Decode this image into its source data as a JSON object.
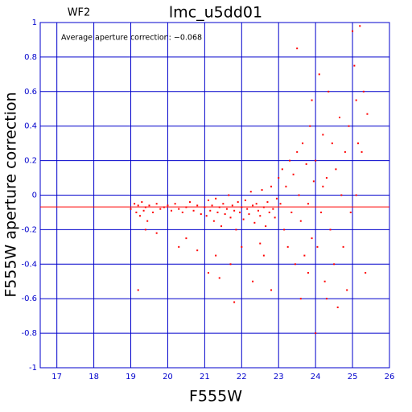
{
  "chart_data": {
    "type": "scatter",
    "title": "lmc_u5dd01",
    "subtitle": "WF2",
    "annotation": "Average aperture correction: −0.068",
    "reference_line": -0.068,
    "reference_color": "#ff0000",
    "xlabel": "F555W",
    "ylabel": "F555W aperture correction",
    "xlim": [
      16.55,
      26
    ],
    "ylim": [
      -1,
      1
    ],
    "xticks": [
      17,
      18,
      19,
      20,
      21,
      22,
      23,
      24,
      25,
      26
    ],
    "yticks": [
      -1,
      -0.8,
      -0.6,
      -0.4,
      -0.2,
      0,
      0.2,
      0.4,
      0.6,
      0.8,
      1
    ],
    "grid": true,
    "axis_color": "#0000cc",
    "series": [
      {
        "color": "#ff0000",
        "x": [
          19.0,
          19.1,
          19.15,
          19.2,
          19.25,
          19.3,
          19.35,
          19.4,
          19.45,
          19.5,
          19.6,
          19.7,
          19.8,
          19.9,
          20.0,
          20.1,
          20.2,
          20.3,
          20.4,
          20.5,
          20.6,
          20.7,
          20.8,
          20.9,
          19.2,
          19.4,
          19.7,
          20.3,
          20.5,
          20.8,
          21.0,
          21.05,
          21.1,
          21.15,
          21.2,
          21.25,
          21.3,
          21.35,
          21.4,
          21.45,
          21.5,
          21.55,
          21.6,
          21.65,
          21.7,
          21.75,
          21.8,
          21.85,
          21.9,
          21.95,
          22.0,
          22.05,
          22.1,
          22.15,
          22.2,
          22.25,
          22.3,
          22.35,
          22.4,
          22.45,
          22.5,
          22.55,
          22.6,
          22.65,
          22.7,
          22.75,
          22.8,
          22.85,
          22.9,
          22.95,
          21.1,
          21.3,
          21.4,
          21.7,
          21.8,
          22.0,
          22.3,
          22.5,
          22.8,
          22.6,
          23.0,
          23.05,
          23.1,
          23.15,
          23.2,
          23.25,
          23.3,
          23.35,
          23.4,
          23.45,
          23.5,
          23.55,
          23.6,
          23.65,
          23.7,
          23.75,
          23.8,
          23.85,
          23.9,
          23.95,
          23.5,
          23.8,
          23.9,
          23.6,
          24.0,
          24.05,
          24.1,
          24.15,
          24.2,
          24.25,
          24.3,
          24.35,
          24.4,
          24.45,
          24.5,
          24.55,
          24.6,
          24.65,
          24.7,
          24.75,
          24.8,
          24.85,
          24.9,
          24.95,
          24.0,
          24.3,
          24.2,
          25.0,
          25.05,
          25.1,
          25.15,
          25.2,
          25.25,
          25.3,
          25.4,
          25.35,
          25.1
        ],
        "values": [
          -0.08,
          -0.05,
          -0.1,
          -0.06,
          -0.12,
          -0.04,
          -0.09,
          -0.07,
          -0.15,
          -0.06,
          -0.1,
          -0.05,
          -0.08,
          -0.07,
          -0.06,
          -0.09,
          -0.05,
          -0.08,
          -0.1,
          -0.07,
          -0.04,
          -0.09,
          -0.06,
          -0.11,
          -0.55,
          -0.2,
          -0.22,
          -0.3,
          -0.25,
          -0.32,
          -0.07,
          -0.12,
          -0.03,
          -0.09,
          -0.06,
          -0.15,
          -0.02,
          -0.1,
          -0.07,
          -0.18,
          -0.05,
          -0.11,
          -0.08,
          0.0,
          -0.13,
          -0.06,
          -0.09,
          -0.2,
          -0.04,
          -0.1,
          -0.07,
          -0.14,
          -0.03,
          -0.08,
          -0.11,
          0.02,
          -0.06,
          -0.16,
          -0.05,
          -0.09,
          -0.12,
          0.03,
          -0.07,
          -0.18,
          -0.04,
          -0.1,
          0.05,
          -0.08,
          -0.13,
          -0.02,
          -0.45,
          -0.35,
          -0.48,
          -0.4,
          -0.62,
          -0.3,
          -0.5,
          -0.28,
          -0.55,
          -0.35,
          0.1,
          -0.05,
          0.15,
          -0.2,
          0.05,
          -0.3,
          0.2,
          -0.1,
          0.12,
          -0.4,
          0.25,
          0.0,
          -0.15,
          0.3,
          -0.35,
          0.18,
          -0.05,
          0.4,
          -0.25,
          0.08,
          0.85,
          -0.45,
          0.55,
          -0.6,
          0.2,
          -0.3,
          0.7,
          -0.1,
          0.35,
          -0.5,
          0.1,
          0.6,
          -0.2,
          0.3,
          -0.4,
          0.15,
          -0.65,
          0.45,
          0.0,
          -0.3,
          0.25,
          -0.55,
          0.4,
          -0.1,
          -0.8,
          -0.6,
          0.05,
          0.95,
          0.75,
          0.55,
          0.3,
          0.98,
          0.25,
          0.6,
          0.47,
          -0.45,
          0.0
        ]
      }
    ]
  }
}
